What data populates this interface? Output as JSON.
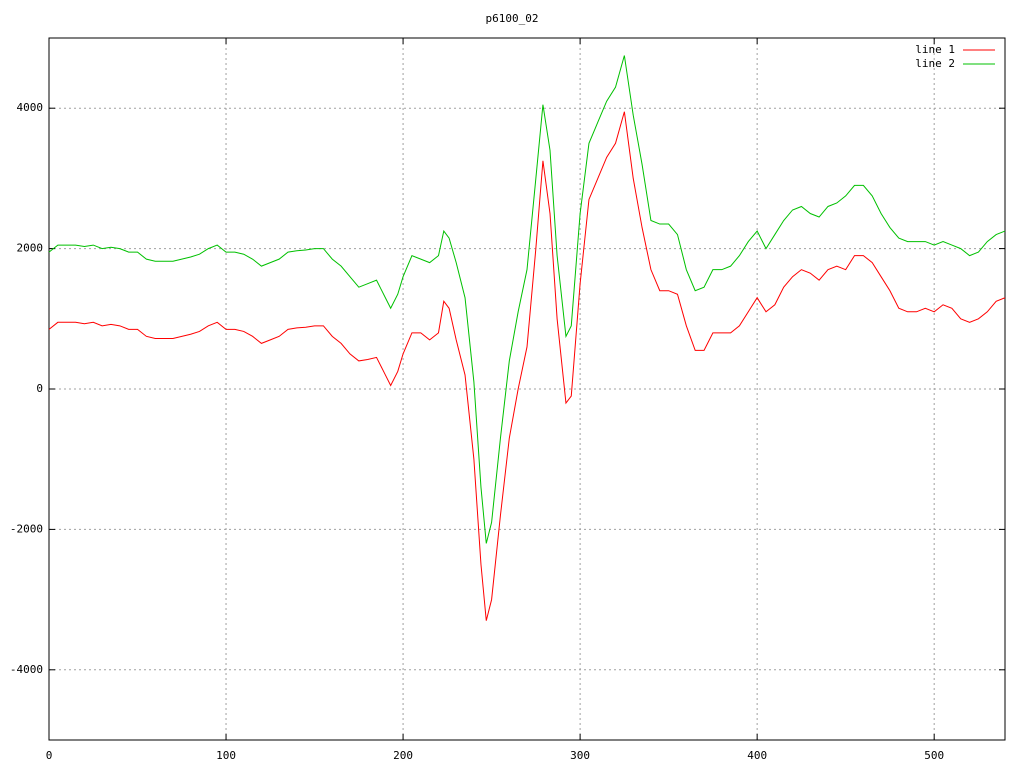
{
  "chart_data": {
    "type": "line",
    "title": "p6100_02",
    "x": [
      0,
      5,
      10,
      15,
      20,
      25,
      30,
      35,
      40,
      45,
      50,
      55,
      60,
      65,
      70,
      75,
      80,
      85,
      90,
      95,
      100,
      105,
      110,
      115,
      120,
      125,
      130,
      135,
      140,
      145,
      150,
      155,
      160,
      165,
      170,
      175,
      180,
      185,
      190,
      193,
      197,
      200,
      205,
      210,
      215,
      220,
      223,
      226,
      230,
      235,
      240,
      244,
      247,
      250,
      255,
      260,
      265,
      270,
      275,
      279,
      283,
      287,
      292,
      295,
      300,
      305,
      310,
      315,
      320,
      325,
      330,
      335,
      340,
      345,
      350,
      355,
      360,
      365,
      370,
      375,
      380,
      385,
      390,
      395,
      400,
      405,
      410,
      415,
      420,
      425,
      430,
      435,
      440,
      445,
      450,
      455,
      460,
      465,
      470,
      475,
      480,
      485,
      490,
      495,
      500,
      505,
      510,
      515,
      520,
      525,
      530,
      535,
      540
    ],
    "series": [
      {
        "name": "line 1",
        "color": "#ff0000",
        "values": [
          850,
          950,
          950,
          950,
          930,
          950,
          900,
          920,
          900,
          850,
          850,
          750,
          720,
          720,
          720,
          750,
          780,
          820,
          900,
          950,
          850,
          850,
          820,
          750,
          650,
          700,
          750,
          850,
          870,
          880,
          900,
          900,
          750,
          650,
          500,
          400,
          420,
          450,
          200,
          50,
          250,
          500,
          800,
          800,
          700,
          800,
          1250,
          1150,
          700,
          200,
          -1000,
          -2500,
          -3300,
          -3000,
          -1800,
          -700,
          0,
          600,
          2000,
          3250,
          2500,
          1000,
          -200,
          -100,
          1500,
          2700,
          3000,
          3300,
          3500,
          3950,
          3000,
          2300,
          1700,
          1400,
          1400,
          1350,
          900,
          550,
          550,
          800,
          800,
          800,
          900,
          1100,
          1300,
          1100,
          1200,
          1450,
          1600,
          1700,
          1650,
          1550,
          1700,
          1750,
          1700,
          1900,
          1900,
          1800,
          1600,
          1400,
          1150,
          1100,
          1100,
          1150,
          1100,
          1200,
          1150,
          1000,
          950,
          1000,
          1100,
          1250,
          1300
        ]
      },
      {
        "name": "line 2",
        "color": "#00c000",
        "values": [
          1950,
          2050,
          2050,
          2050,
          2030,
          2050,
          2000,
          2020,
          2000,
          1950,
          1950,
          1850,
          1820,
          1820,
          1820,
          1850,
          1880,
          1920,
          2000,
          2050,
          1950,
          1950,
          1920,
          1850,
          1750,
          1800,
          1850,
          1950,
          1970,
          1980,
          2000,
          2000,
          1850,
          1750,
          1600,
          1450,
          1500,
          1550,
          1300,
          1150,
          1350,
          1600,
          1900,
          1850,
          1800,
          1900,
          2250,
          2150,
          1800,
          1300,
          100,
          -1400,
          -2200,
          -1900,
          -700,
          400,
          1100,
          1700,
          3000,
          4050,
          3400,
          1900,
          750,
          900,
          2500,
          3500,
          3800,
          4100,
          4300,
          4750,
          3900,
          3200,
          2400,
          2350,
          2350,
          2200,
          1700,
          1400,
          1450,
          1700,
          1700,
          1750,
          1900,
          2100,
          2250,
          2000,
          2200,
          2400,
          2550,
          2600,
          2500,
          2450,
          2600,
          2650,
          2750,
          2900,
          2900,
          2750,
          2500,
          2300,
          2150,
          2100,
          2100,
          2100,
          2050,
          2100,
          2050,
          2000,
          1900,
          1950,
          2100,
          2200,
          2250
        ]
      }
    ],
    "xlim": [
      0,
      540
    ],
    "xticks": [
      0,
      100,
      200,
      300,
      400,
      500
    ],
    "ylim": [
      -5000,
      5000
    ],
    "yticks": [
      -4000,
      -2000,
      0,
      2000,
      4000
    ],
    "grid": true,
    "legend": "top-right"
  }
}
